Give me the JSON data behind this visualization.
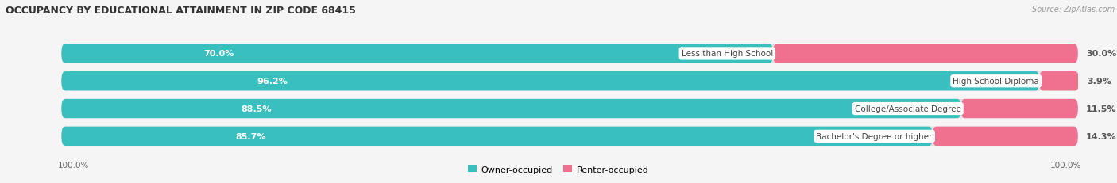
{
  "title": "OCCUPANCY BY EDUCATIONAL ATTAINMENT IN ZIP CODE 68415",
  "source": "Source: ZipAtlas.com",
  "categories": [
    "Less than High School",
    "High School Diploma",
    "College/Associate Degree",
    "Bachelor's Degree or higher"
  ],
  "owner_pct": [
    70.0,
    96.2,
    88.5,
    85.7
  ],
  "renter_pct": [
    30.0,
    3.9,
    11.5,
    14.3
  ],
  "owner_color": "#3abfbf",
  "renter_color": "#f07090",
  "renter_color_light": "#f5a0b8",
  "bg_color": "#f5f5f5",
  "bar_bg_color": "#e0e0e0",
  "left_label": "100.0%",
  "right_label": "100.0%"
}
